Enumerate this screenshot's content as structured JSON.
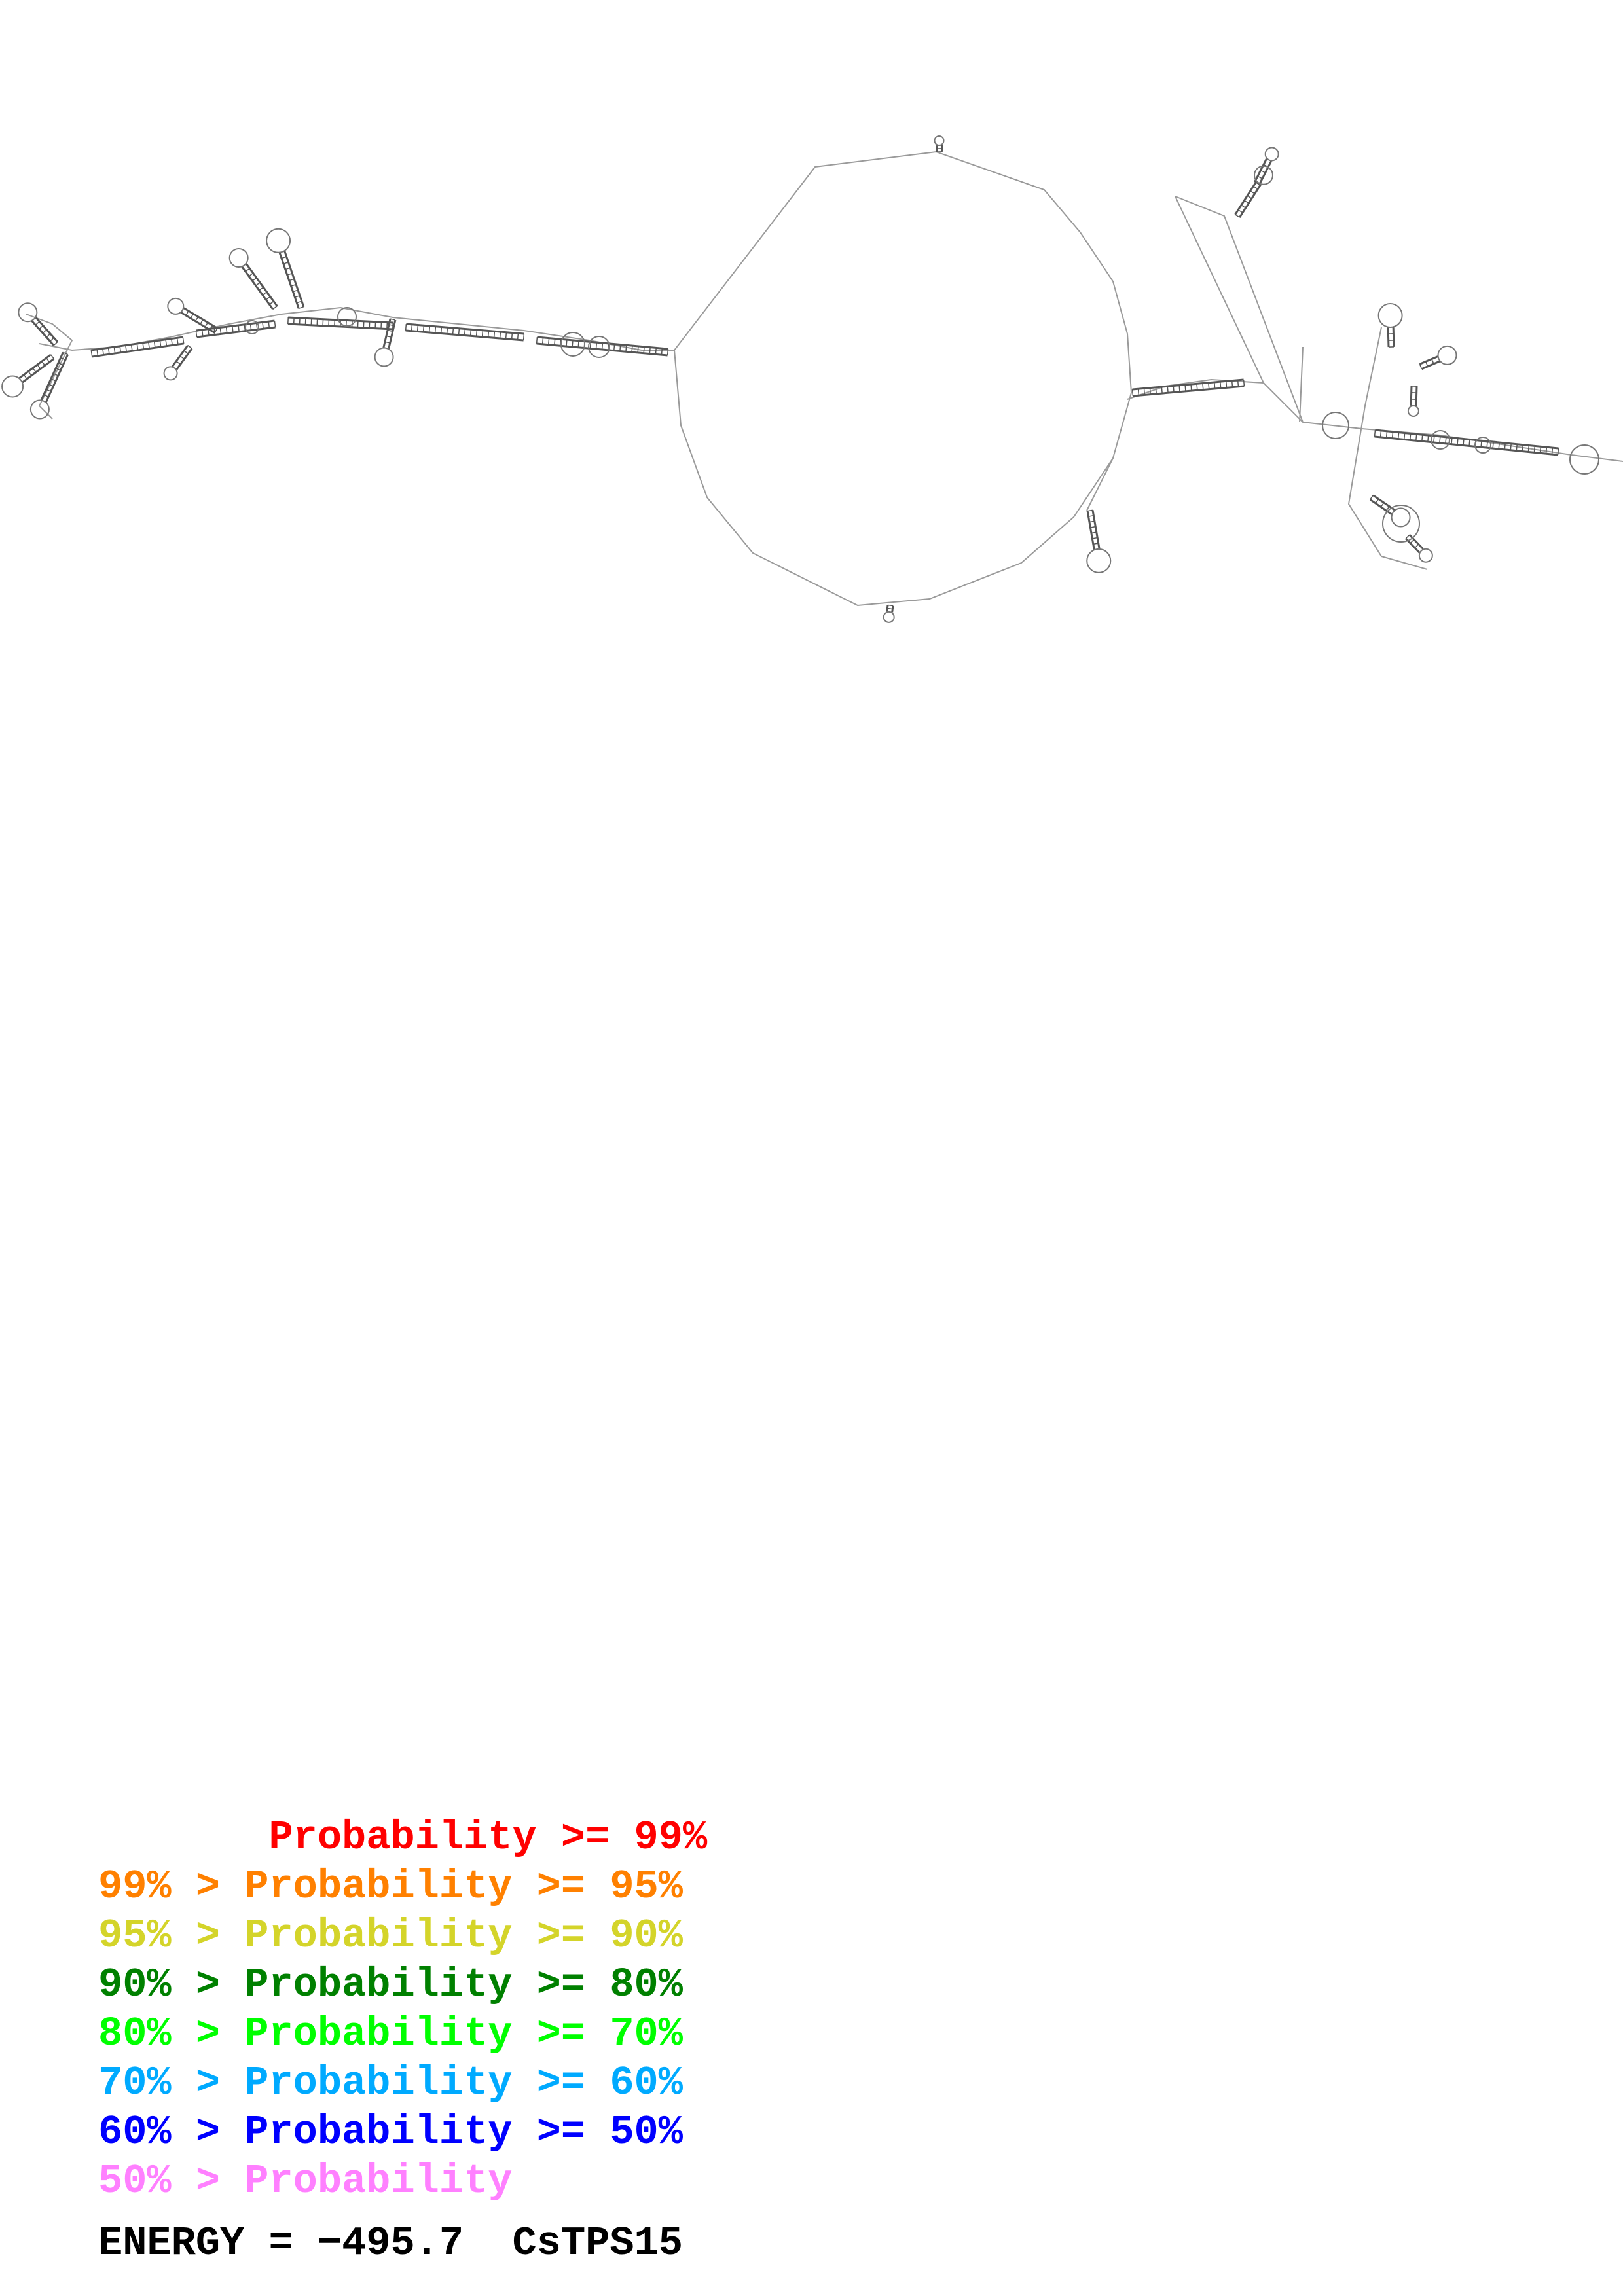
{
  "legend": {
    "rows": [
      {
        "text": "       Probability >= 99%",
        "color": "#ff0000"
      },
      {
        "text": "99% > Probability >= 95%",
        "color": "#ff8000"
      },
      {
        "text": "95% > Probability >= 90%",
        "color": "#d4d42a"
      },
      {
        "text": "90% > Probability >= 80%",
        "color": "#008000"
      },
      {
        "text": "80% > Probability >= 70%",
        "color": "#00ff00"
      },
      {
        "text": "70% > Probability >= 60%",
        "color": "#00aaff"
      },
      {
        "text": "60% > Probability >= 50%",
        "color": "#0000ff"
      },
      {
        "text": "50% > Probability",
        "color": "#ff80ff"
      }
    ]
  },
  "energy": {
    "label": "ENERGY = ",
    "value": "−495.7",
    "name": "CsTPS15"
  },
  "colors": {
    "backbone": "#9a9a9a",
    "base_pair": "#555555"
  }
}
